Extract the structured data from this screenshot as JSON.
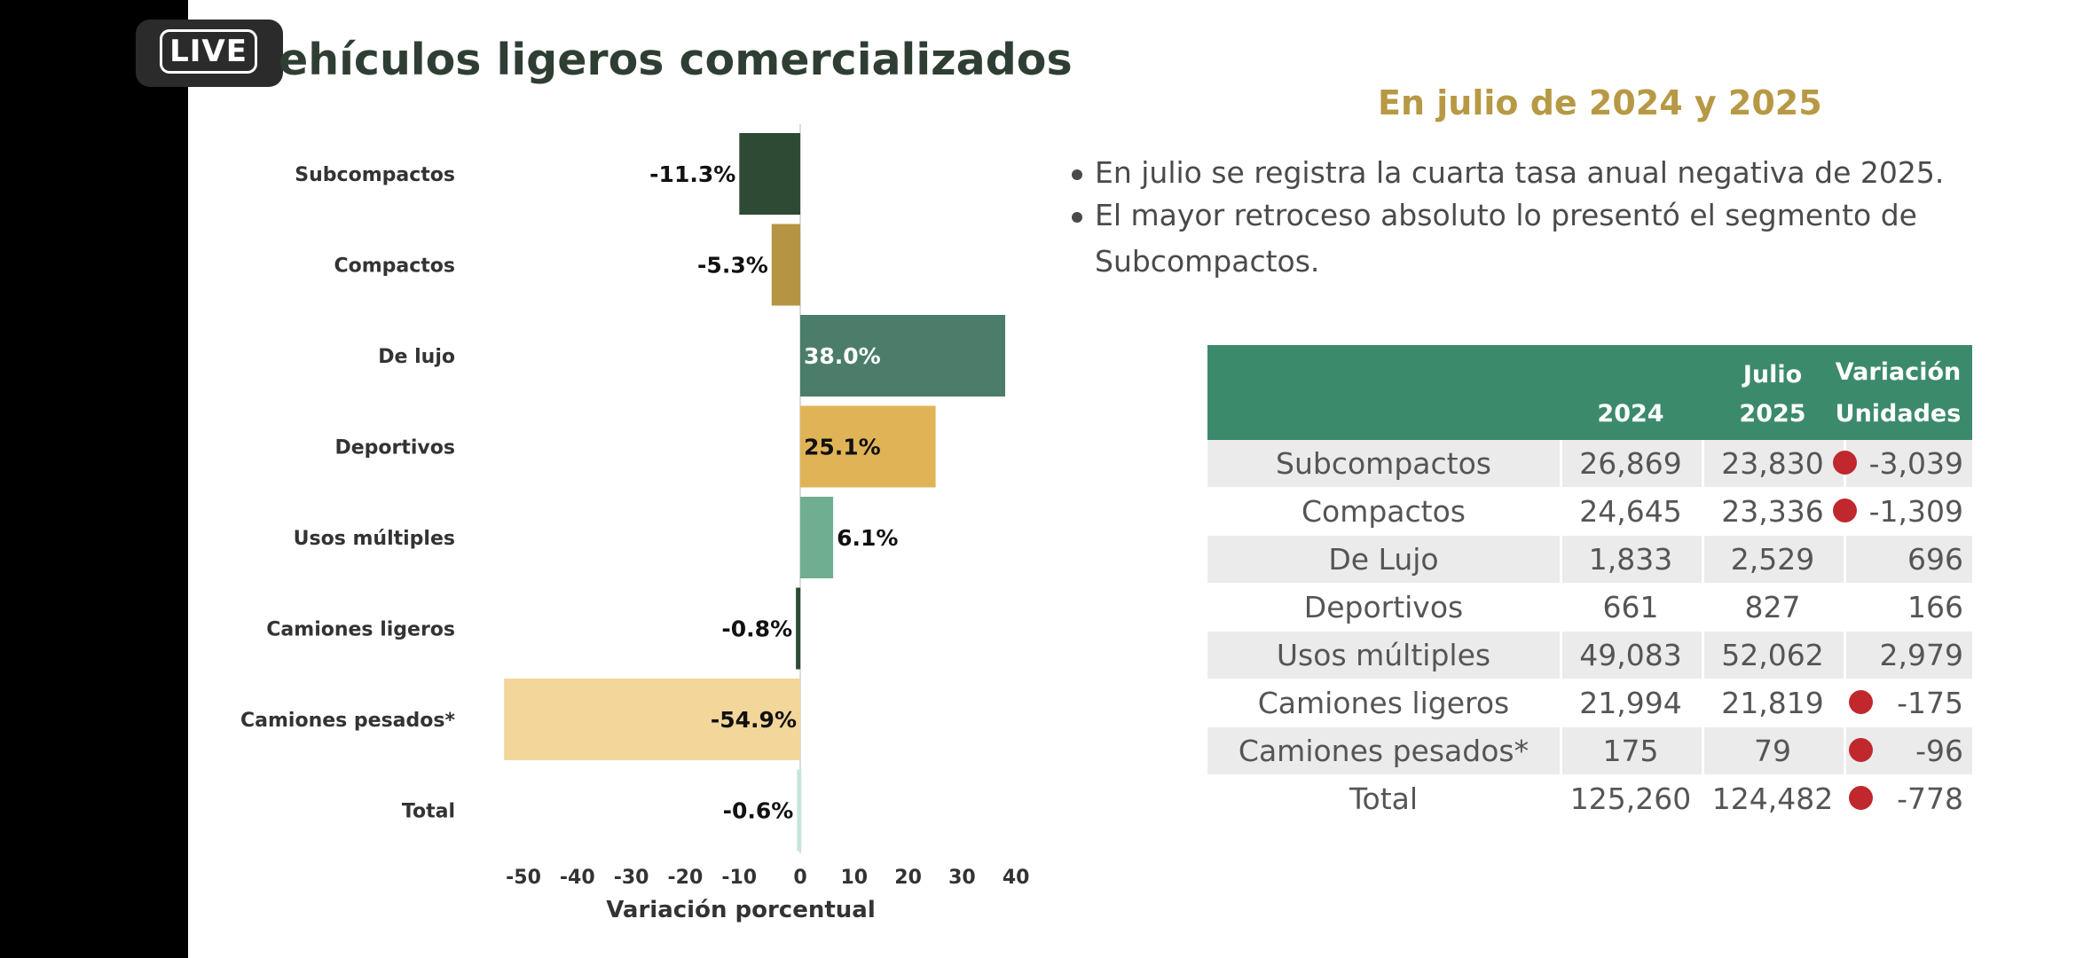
{
  "live_badge": "LIVE",
  "slide": {
    "title": "ehículos ligeros comercializados",
    "subtitle": "En julio de 2024 y 2025",
    "bullets": [
      {
        "lines": [
          "En julio se registra la cuarta tasa anual negativa de 2025."
        ]
      },
      {
        "lines": [
          "El mayor retroceso absoluto lo presentó el segmento de",
          "Subcompactos."
        ]
      }
    ]
  },
  "chart_data": {
    "type": "bar",
    "orientation": "horizontal",
    "categories": [
      "Subcompactos",
      "Compactos",
      "De lujo",
      "Deportivos",
      "Usos múltiples",
      "Camiones ligeros",
      "Camiones pesados*",
      "Total"
    ],
    "values": [
      -11.3,
      -5.3,
      38.0,
      25.1,
      6.1,
      -0.8,
      -54.9,
      -0.6
    ],
    "value_labels": [
      "-11.3%",
      "-5.3%",
      "38.0%",
      "25.1%",
      "6.1%",
      "-0.8%",
      "-54.9%",
      "-0.6%"
    ],
    "bar_colors": [
      "#2e4a34",
      "#b59444",
      "#4c7d6b",
      "#e0b456",
      "#6fae90",
      "#2e4a34",
      "#f2d69a",
      "#c6e6da"
    ],
    "xlabel": "Variación porcentual",
    "xticks": [
      -50,
      -40,
      -30,
      -20,
      -10,
      0,
      10,
      20,
      30,
      40
    ],
    "xtick_labels": [
      "-50",
      "-40",
      "-30",
      "-20",
      "-10",
      "0",
      "10",
      "20",
      "30",
      "40"
    ],
    "xlim": [
      -50,
      40
    ],
    "grid": false
  },
  "table": {
    "header": {
      "month": "Julio",
      "year1": "2024",
      "year2": "2025",
      "var_line1": "Variación",
      "var_line2": "Unidades"
    },
    "rows": [
      {
        "name": "Subcompactos",
        "y2024": "26,869",
        "y2025": "23,830",
        "variation": "-3,039",
        "decrease": true
      },
      {
        "name": "Compactos",
        "y2024": "24,645",
        "y2025": "23,336",
        "variation": "-1,309",
        "decrease": true
      },
      {
        "name": "De Lujo",
        "y2024": "1,833",
        "y2025": "2,529",
        "variation": "696",
        "decrease": false
      },
      {
        "name": "Deportivos",
        "y2024": "661",
        "y2025": "827",
        "variation": "166",
        "decrease": false
      },
      {
        "name": "Usos múltiples",
        "y2024": "49,083",
        "y2025": "52,062",
        "variation": "2,979",
        "decrease": false
      },
      {
        "name": "Camiones ligeros",
        "y2024": "21,994",
        "y2025": "21,819",
        "variation": "-175",
        "decrease": true
      },
      {
        "name": "Camiones pesados*",
        "y2024": "175",
        "y2025": "79",
        "variation": "-96",
        "decrease": true
      },
      {
        "name": "Total",
        "y2024": "125,260",
        "y2025": "124,482",
        "variation": "-778",
        "decrease": true
      }
    ],
    "colors": {
      "header_bg": "#3c8a6c",
      "decrease_marker": "#c0282e",
      "row_alt_bg": "#ebebeb"
    }
  }
}
